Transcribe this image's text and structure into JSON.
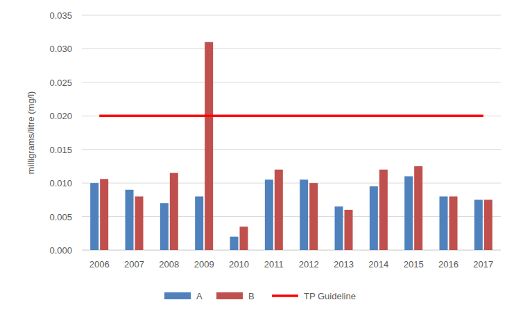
{
  "chart_data": {
    "type": "bar",
    "y_label": "milligrams/litre (mg/l)",
    "categories": [
      "2006",
      "2007",
      "2008",
      "2009",
      "2010",
      "2011",
      "2012",
      "2013",
      "2014",
      "2015",
      "2016",
      "2017"
    ],
    "series": [
      {
        "name": "A",
        "color": "#4f81bd",
        "values": [
          0.01,
          0.009,
          0.007,
          0.008,
          0.002,
          0.0105,
          0.0105,
          0.0065,
          0.0095,
          0.011,
          0.008,
          0.0075
        ]
      },
      {
        "name": "B",
        "color": "#c0504d",
        "values": [
          0.0106,
          0.008,
          0.0115,
          0.031,
          0.0035,
          0.012,
          0.01,
          0.006,
          0.012,
          0.0125,
          0.008,
          0.0075
        ]
      },
      {
        "name": "TP Guideline",
        "type": "line",
        "color": "#ff0000",
        "values": [
          0.02,
          0.02,
          0.02,
          0.02,
          0.02,
          0.02,
          0.02,
          0.02,
          0.02,
          0.02,
          0.02,
          0.02
        ]
      }
    ],
    "ylim": [
      0,
      0.035
    ],
    "yticks": [
      {
        "value": 0,
        "label": "0.000"
      },
      {
        "value": 0.005,
        "label": "0.005"
      },
      {
        "value": 0.01,
        "label": "0.010"
      },
      {
        "value": 0.015,
        "label": "0.015"
      },
      {
        "value": 0.02,
        "label": "0.020"
      },
      {
        "value": 0.025,
        "label": "0.025"
      },
      {
        "value": 0.03,
        "label": "0.030"
      },
      {
        "value": 0.035,
        "label": "0.035"
      }
    ],
    "grid": true,
    "legend": "bottom"
  }
}
